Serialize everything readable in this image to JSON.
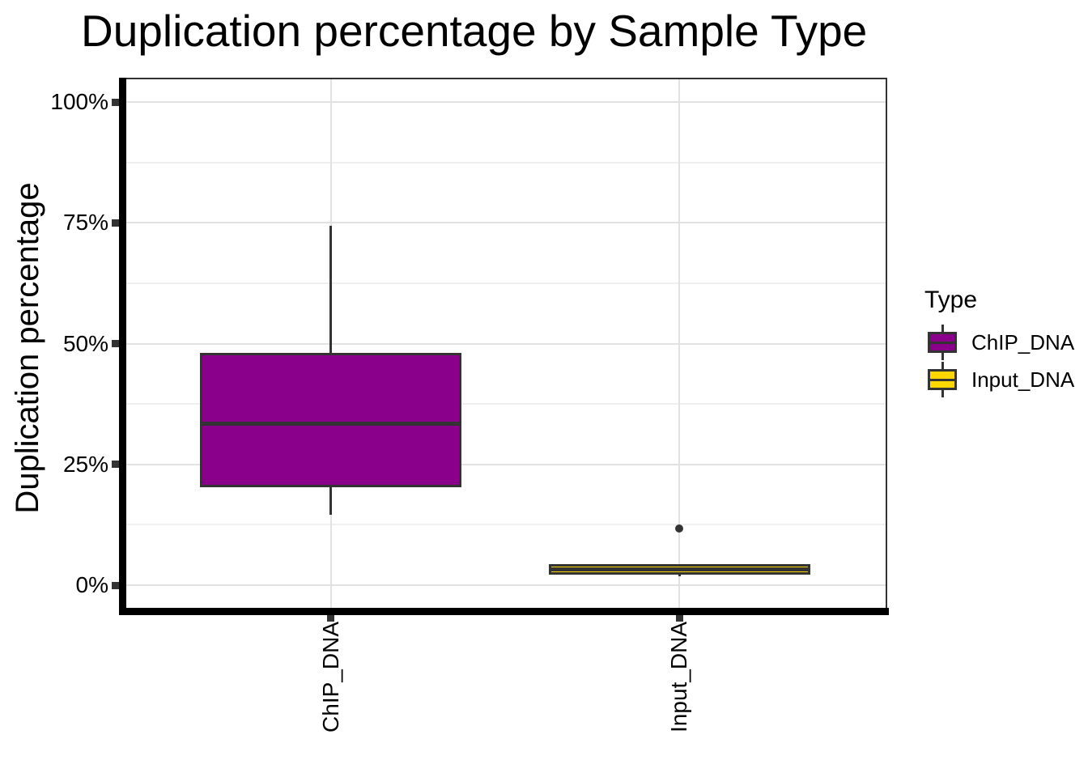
{
  "colors": {
    "background": "#FFFFFF",
    "text": "#000000",
    "axis_line": "#000000",
    "panel_border": "#333333",
    "tick_mark": "#333333",
    "box_outline": "#333333",
    "grid_major": "#E2E2E2",
    "grid_minor": "#EFEFEF",
    "chip_fill": "#8B008B",
    "input_fill": "#FFD700"
  },
  "chart_data": {
    "type": "boxplot",
    "title": "Duplication percentage by Sample Type",
    "xlabel": "",
    "ylabel": "Duplication percentage",
    "ylim": [
      0,
      100
    ],
    "grid": true,
    "y_ticks": [
      {
        "value": 0,
        "label": "0%"
      },
      {
        "value": 25,
        "label": "25%"
      },
      {
        "value": 50,
        "label": "50%"
      },
      {
        "value": 75,
        "label": "75%"
      },
      {
        "value": 100,
        "label": "100%"
      }
    ],
    "y_minor_ticks": [
      12.5,
      37.5,
      62.5,
      87.5
    ],
    "categories": [
      "ChIP_DNA",
      "Input_DNA"
    ],
    "legend": {
      "title": "Type",
      "position": "right",
      "entries": [
        {
          "label": "ChIP_DNA",
          "fill": "#8B008B"
        },
        {
          "label": "Input_DNA",
          "fill": "#FFD700"
        }
      ]
    },
    "series": [
      {
        "name": "ChIP_DNA",
        "fill": "#8B008B",
        "whisker_low": 14.5,
        "q1": 20.3,
        "median": 33.4,
        "q3": 48.0,
        "whisker_high": 74.4,
        "outliers": []
      },
      {
        "name": "Input_DNA",
        "fill": "#FFD700",
        "whisker_low": 1.8,
        "q1": 2.2,
        "median": 3.3,
        "q3": 4.3,
        "whisker_high": 4.4,
        "outliers": [
          11.8
        ]
      }
    ]
  }
}
